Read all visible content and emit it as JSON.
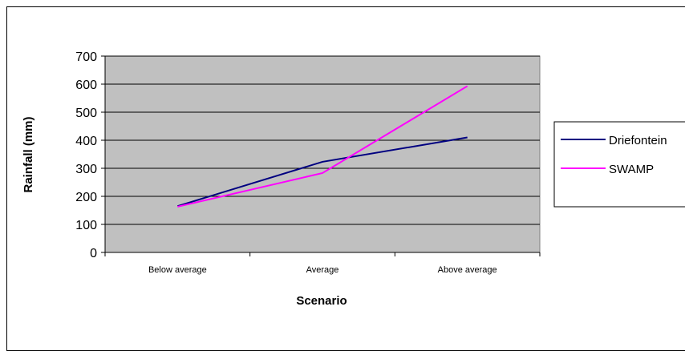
{
  "chart_data": {
    "type": "line",
    "title": "",
    "xlabel": "Scenario",
    "ylabel": "Rainfall (mm)",
    "categories": [
      "Below average",
      "Average",
      "Above average"
    ],
    "ylim": [
      0,
      700
    ],
    "yticks": [
      "0",
      "100",
      "200",
      "300",
      "400",
      "500",
      "600",
      "700"
    ],
    "grid": true,
    "legend_position": "right",
    "plot_background": "#c0c0c0",
    "series": [
      {
        "name": "Driefontein",
        "color": "#000080",
        "values": [
          165,
          323,
          410
        ]
      },
      {
        "name": "SWAMP",
        "color": "#ff00ff",
        "values": [
          163,
          283,
          593
        ]
      }
    ]
  }
}
